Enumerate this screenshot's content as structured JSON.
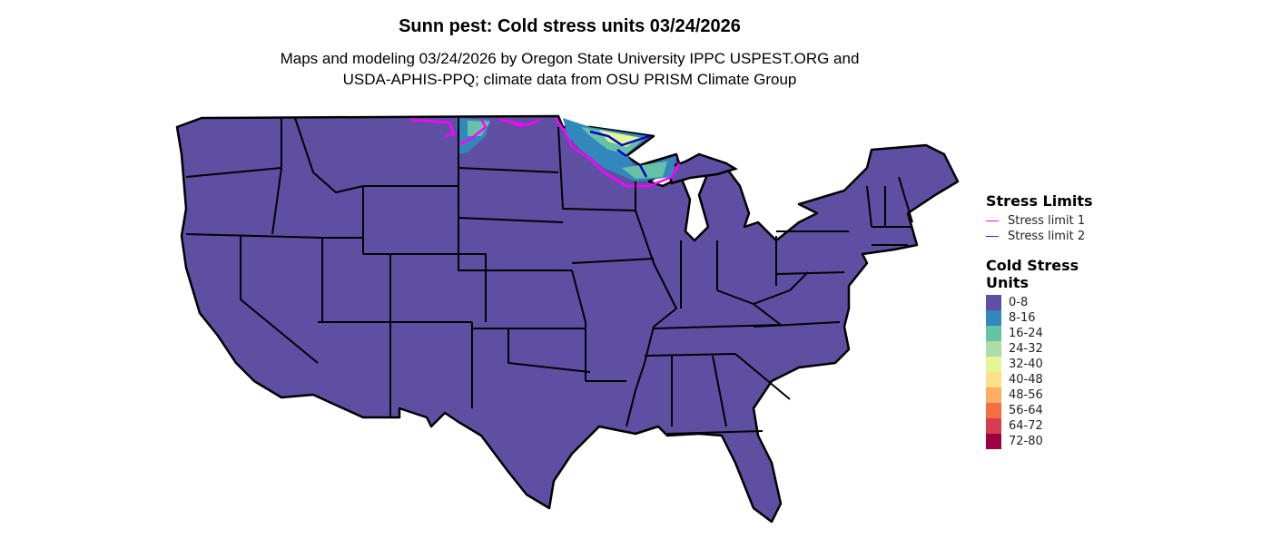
{
  "title": "Sunn pest: Cold stress units 03/24/2026",
  "subtitle_lines": [
    "Maps and modeling 03/24/2026 by Oregon State University IPPC USPEST.ORG and",
    "USDA-APHIS-PPQ; climate data from OSU PRISM Climate Group"
  ],
  "legend": {
    "stress_limits": {
      "title": "Stress Limits",
      "items": [
        {
          "label": "Stress limit 1",
          "color": "#FF00FF"
        },
        {
          "label": "Stress limit 2",
          "color": "#2B2BD9"
        }
      ]
    },
    "cold_stress": {
      "title": "Cold Stress Units",
      "items": [
        {
          "label": "0-8",
          "color": "#5E4FA2"
        },
        {
          "label": "8-16",
          "color": "#3288BD"
        },
        {
          "label": "16-24",
          "color": "#66C2A5"
        },
        {
          "label": "24-32",
          "color": "#ABDDA4"
        },
        {
          "label": "32-40",
          "color": "#E6F598"
        },
        {
          "label": "40-48",
          "color": "#FEE08B"
        },
        {
          "label": "48-56",
          "color": "#FDAE61"
        },
        {
          "label": "56-64",
          "color": "#F46D43"
        },
        {
          "label": "64-72",
          "color": "#D53E4F"
        },
        {
          "label": "72-80",
          "color": "#9E0142"
        }
      ]
    }
  },
  "map": {
    "region": "Contiguous United States",
    "base_fill": "#5E4FA2",
    "border_color": "#000000"
  }
}
